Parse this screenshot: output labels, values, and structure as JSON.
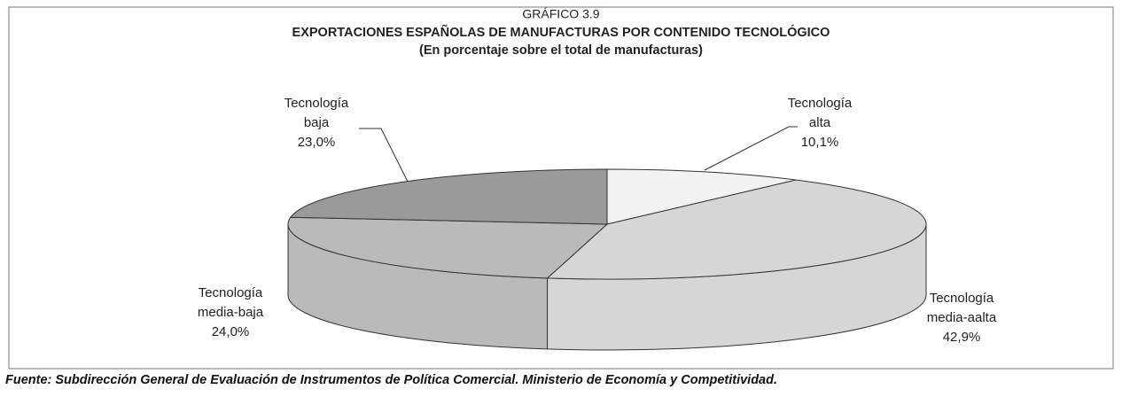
{
  "chart_data": {
    "type": "pie",
    "kicker": "GRÁFICO 3.9",
    "title": "EXPORTACIONES ESPAÑOLAS DE MANUFACTURAS POR CONTENIDO TECNOLÓGICO",
    "subtitle": "(En porcentaje sobre el total de manufacturas)",
    "categories": [
      "Tecnología alta",
      "Tecnología media-aalta",
      "Tecnología media-baja",
      "Tecnología baja"
    ],
    "values": [
      10.1,
      42.9,
      24.0,
      23.0
    ],
    "value_labels": [
      "10,1%",
      "42,9%",
      "24,0%",
      "23,0%"
    ],
    "colors": [
      "#f2f2f2",
      "#d6d6d6",
      "#bababa",
      "#9a9a9a"
    ],
    "source": "Fuente: Subdirección General de Evaluación de Instrumentos de Política Comercial. Ministerio de Economía y Competitividad."
  }
}
